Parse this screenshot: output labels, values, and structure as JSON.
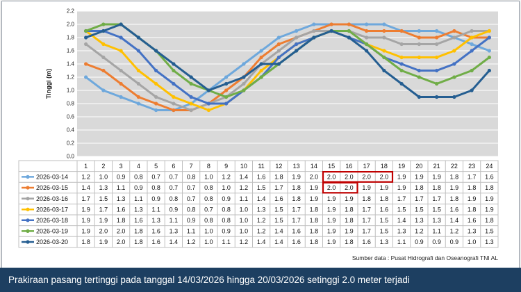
{
  "chart_data": {
    "type": "line",
    "ylabel": "Tinggi (m)",
    "ylim": [
      0,
      2.2
    ],
    "yticks": [
      "0.0",
      "0.2",
      "0.4",
      "0.6",
      "0.8",
      "1.0",
      "1.2",
      "1.4",
      "1.6",
      "1.8",
      "2.0",
      "2.2"
    ],
    "categories": [
      "1",
      "2",
      "3",
      "4",
      "5",
      "6",
      "7",
      "8",
      "9",
      "10",
      "11",
      "12",
      "13",
      "14",
      "15",
      "16",
      "17",
      "18",
      "19",
      "20",
      "21",
      "22",
      "23",
      "24"
    ],
    "grid": true,
    "series": [
      {
        "name": "2026-03-14",
        "color": "#6ea8dc",
        "values": [
          1.2,
          1.0,
          0.9,
          0.8,
          0.7,
          0.7,
          0.8,
          1.0,
          1.2,
          1.4,
          1.6,
          1.8,
          1.9,
          2.0,
          2.0,
          2.0,
          2.0,
          2.0,
          1.9,
          1.9,
          1.9,
          1.8,
          1.7,
          1.6
        ]
      },
      {
        "name": "2026-03-15",
        "color": "#ed7d31",
        "values": [
          1.4,
          1.3,
          1.1,
          0.9,
          0.8,
          0.7,
          0.7,
          0.8,
          1.0,
          1.2,
          1.5,
          1.7,
          1.8,
          1.9,
          2.0,
          2.0,
          1.9,
          1.9,
          1.9,
          1.8,
          1.8,
          1.9,
          1.8,
          1.8
        ]
      },
      {
        "name": "2026-03-16",
        "color": "#a5a5a5",
        "values": [
          1.7,
          1.5,
          1.3,
          1.1,
          0.9,
          0.8,
          0.7,
          0.8,
          0.9,
          1.1,
          1.4,
          1.6,
          1.8,
          1.9,
          1.9,
          1.9,
          1.8,
          1.8,
          1.7,
          1.7,
          1.7,
          1.8,
          1.9,
          1.9
        ]
      },
      {
        "name": "2026-03-17",
        "color": "#ffc000",
        "values": [
          1.9,
          1.7,
          1.6,
          1.3,
          1.1,
          0.9,
          0.8,
          0.7,
          0.8,
          1.0,
          1.3,
          1.5,
          1.7,
          1.8,
          1.9,
          1.8,
          1.7,
          1.6,
          1.5,
          1.5,
          1.5,
          1.6,
          1.8,
          1.9
        ]
      },
      {
        "name": "2026-03-18",
        "color": "#4472c4",
        "values": [
          1.9,
          1.9,
          1.8,
          1.6,
          1.3,
          1.1,
          0.9,
          0.8,
          0.8,
          1.0,
          1.2,
          1.5,
          1.7,
          1.8,
          1.9,
          1.8,
          1.7,
          1.5,
          1.4,
          1.3,
          1.3,
          1.4,
          1.6,
          1.8
        ]
      },
      {
        "name": "2026-03-19",
        "color": "#70ad47",
        "values": [
          1.9,
          2.0,
          2.0,
          1.8,
          1.6,
          1.3,
          1.1,
          1.0,
          0.9,
          1.0,
          1.2,
          1.4,
          1.6,
          1.8,
          1.9,
          1.9,
          1.7,
          1.5,
          1.3,
          1.2,
          1.1,
          1.2,
          1.3,
          1.5
        ]
      },
      {
        "name": "2026-03-20",
        "color": "#255e91",
        "values": [
          1.8,
          1.9,
          2.0,
          1.8,
          1.6,
          1.4,
          1.2,
          1.0,
          1.1,
          1.2,
          1.4,
          1.4,
          1.6,
          1.8,
          1.9,
          1.8,
          1.6,
          1.3,
          1.1,
          0.9,
          0.9,
          0.9,
          1.0,
          1.3
        ]
      }
    ],
    "highlighted_cells": [
      {
        "series": 0,
        "from": 14,
        "to": 17
      },
      {
        "series": 1,
        "from": 14,
        "to": 15
      }
    ]
  },
  "source_text": "Sumber data : Pusat Hidrografi dan Oseanografi TNI AL",
  "caption": "Prakiraan pasang tertinggi pada tanggal 14/03/2026 hingga 20/03/2026 setinggi 2.0 meter terjadi"
}
